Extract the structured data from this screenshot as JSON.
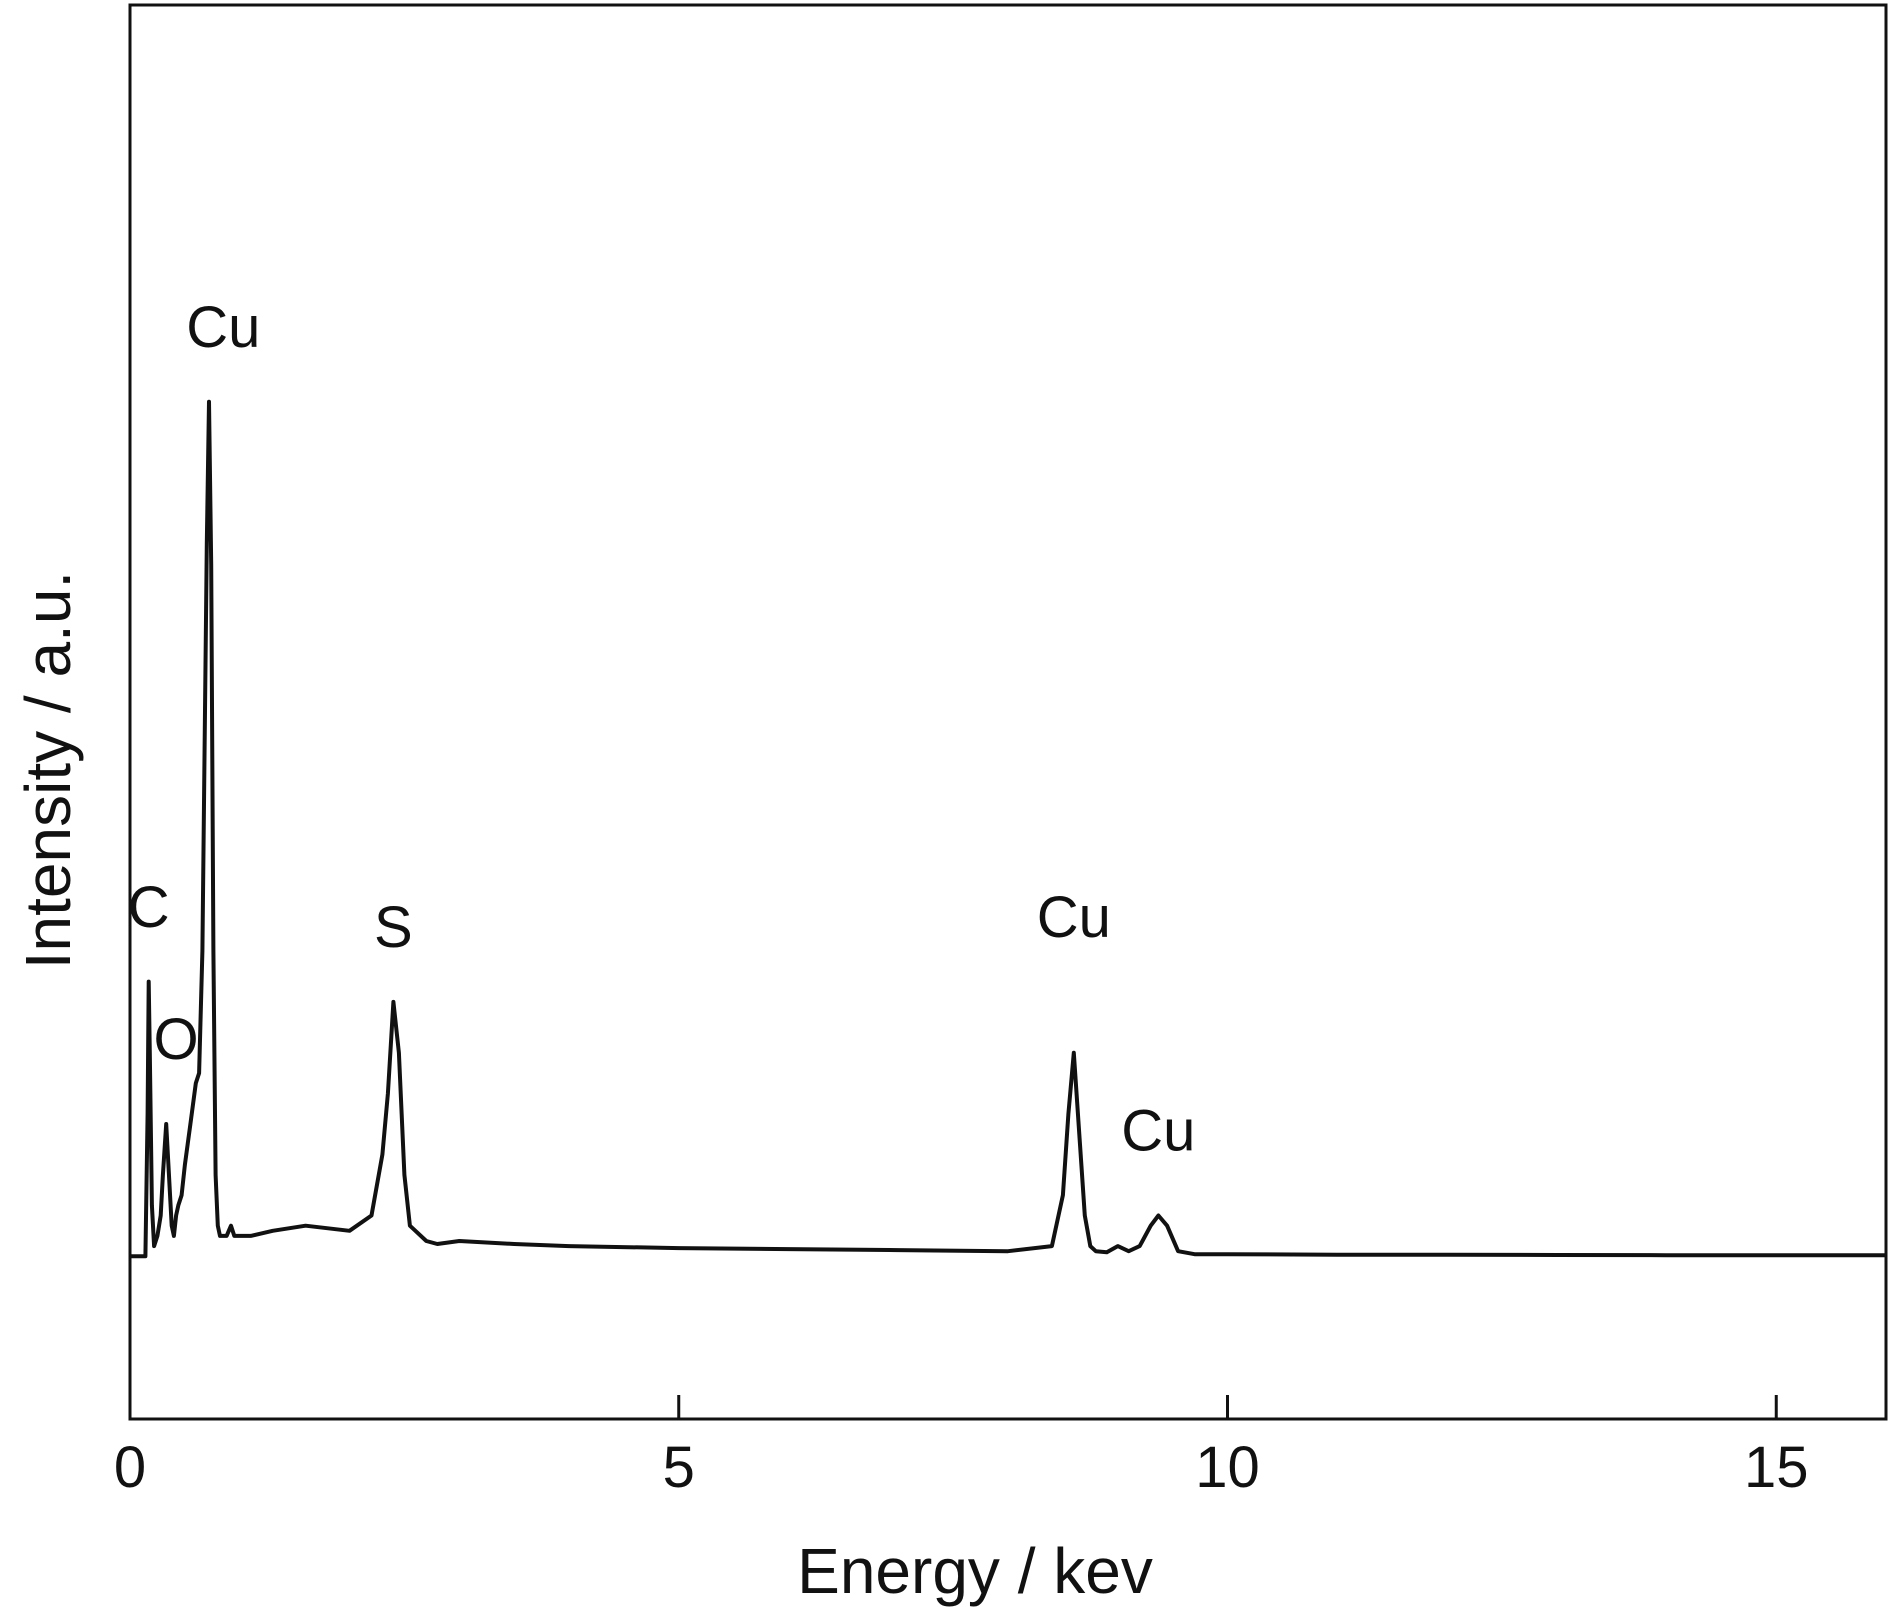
{
  "chart_data": {
    "type": "line",
    "title": "",
    "xlabel": "Energy / kev",
    "ylabel": "Intensity / a.u.",
    "xlim": [
      0,
      16
    ],
    "ylim": [
      -0.16,
      1.23
    ],
    "xticks": [
      0,
      5,
      10,
      15
    ],
    "xtick_labels": [
      "0",
      "5",
      "10",
      "15"
    ],
    "yticks_shown": false,
    "grid": false,
    "legend": "none",
    "line_color": "#111111",
    "series": [
      {
        "x": [
          0,
          0.14,
          0.16,
          0.17,
          0.18,
          0.2,
          0.22,
          0.25,
          0.28,
          0.3,
          0.33,
          0.36,
          0.38,
          0.4,
          0.42,
          0.44,
          0.47,
          0.5,
          0.55,
          0.6,
          0.63,
          0.66,
          0.7,
          0.72,
          0.74,
          0.76,
          0.78,
          0.8,
          0.82,
          0.84,
          0.86,
          0.88,
          0.9,
          0.92,
          0.95,
          1.0,
          1.1,
          1.3,
          1.6,
          2.0,
          2.2,
          2.3,
          2.35,
          2.4,
          2.45,
          2.5,
          2.55,
          2.6,
          2.7,
          2.8,
          3.0,
          3.5,
          4.0,
          5.0,
          6.0,
          7.0,
          8.0,
          8.4,
          8.5,
          8.55,
          8.6,
          8.65,
          8.7,
          8.75,
          8.8,
          8.9,
          9.0,
          9.1,
          9.2,
          9.3,
          9.37,
          9.45,
          9.55,
          9.7,
          10.0,
          11.0,
          12.0,
          13.0,
          14.0,
          15.0,
          16.0
        ],
        "values": [
          0.0,
          0.0,
          0.14,
          0.27,
          0.2,
          0.05,
          0.01,
          0.02,
          0.04,
          0.08,
          0.13,
          0.07,
          0.03,
          0.02,
          0.04,
          0.05,
          0.06,
          0.09,
          0.13,
          0.17,
          0.18,
          0.3,
          0.7,
          0.84,
          0.68,
          0.3,
          0.08,
          0.03,
          0.02,
          0.02,
          0.02,
          0.02,
          0.025,
          0.03,
          0.02,
          0.02,
          0.02,
          0.025,
          0.03,
          0.025,
          0.04,
          0.1,
          0.16,
          0.25,
          0.2,
          0.08,
          0.03,
          0.025,
          0.015,
          0.012,
          0.015,
          0.012,
          0.01,
          0.008,
          0.007,
          0.006,
          0.005,
          0.01,
          0.06,
          0.14,
          0.2,
          0.12,
          0.04,
          0.01,
          0.005,
          0.004,
          0.01,
          0.005,
          0.01,
          0.03,
          0.04,
          0.03,
          0.005,
          0.002,
          0.002,
          0.0015,
          0.0015,
          0.0012,
          0.001,
          0.001,
          0.001
        ]
      }
    ],
    "annotations": [
      {
        "text": "Cu",
        "x": 0.85,
        "y": 0.88
      },
      {
        "text": "C",
        "x": 0.17,
        "y": 0.31
      },
      {
        "text": "O",
        "x": 0.42,
        "y": 0.18
      },
      {
        "text": "S",
        "x": 2.4,
        "y": 0.29
      },
      {
        "text": "Cu",
        "x": 8.6,
        "y": 0.3
      },
      {
        "text": "Cu",
        "x": 9.37,
        "y": 0.09
      }
    ]
  }
}
